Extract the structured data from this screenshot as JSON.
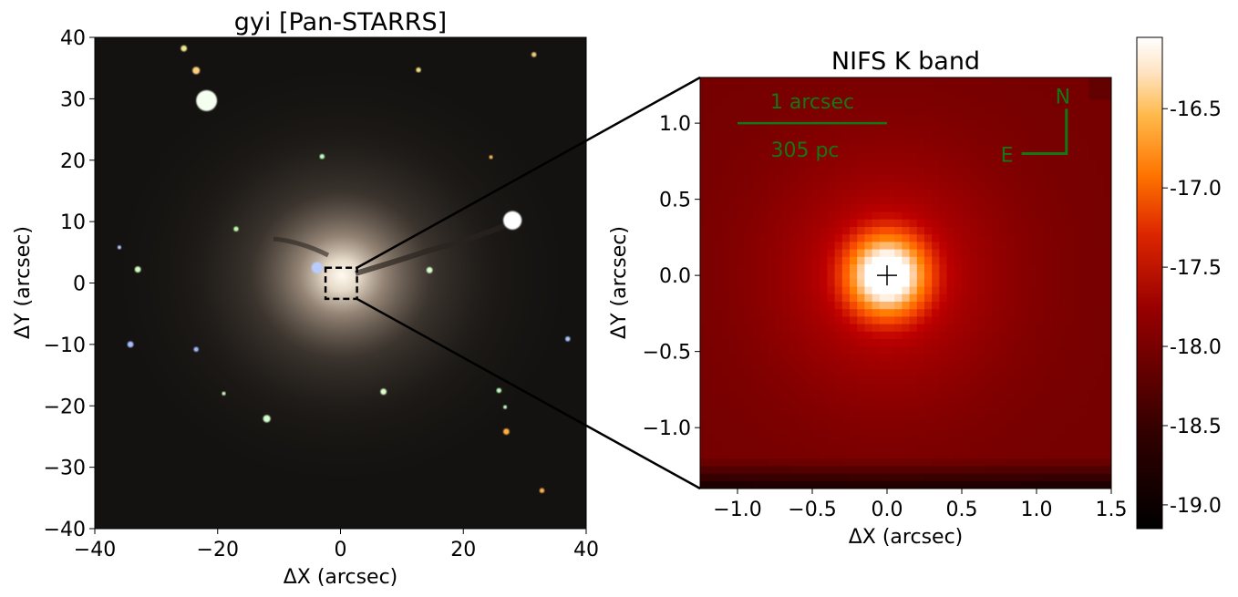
{
  "chart_data": [
    {
      "type": "heatmap",
      "title": "gyi [Pan-STARRS]",
      "xlabel": "ΔX (arcsec)",
      "ylabel": "ΔY (arcsec)",
      "xlim": [
        -40,
        40
      ],
      "ylim": [
        -40,
        40
      ],
      "xticks": [
        -40,
        -20,
        0,
        20,
        40
      ],
      "xtick_labels": [
        "−40",
        "−20",
        "0",
        "20",
        "40"
      ],
      "yticks": [
        40,
        30,
        20,
        10,
        0,
        -10,
        -20,
        -30,
        -40
      ],
      "ytick_labels": [
        "40",
        "30",
        "20",
        "10",
        "0",
        "−10",
        "−20",
        "−30",
        "−40"
      ],
      "zoom_box": {
        "x": [
          -1.25,
          1.5
        ],
        "y": [
          -1.4,
          1.3
        ]
      },
      "sources": [
        {
          "x": -21.8,
          "y": 29.7,
          "r": 1.7,
          "color": "#f4fff0"
        },
        {
          "x": -23.5,
          "y": 34.6,
          "r": 0.6,
          "color": "#ffd080"
        },
        {
          "x": -25.5,
          "y": 38.2,
          "r": 0.5,
          "color": "#f0e890"
        },
        {
          "x": 28.0,
          "y": 10.2,
          "r": 1.5,
          "color": "#ffffff"
        },
        {
          "x": -3.8,
          "y": 2.5,
          "r": 0.9,
          "color": "#b8ccff"
        },
        {
          "x": 14.5,
          "y": 2.1,
          "r": 0.5,
          "color": "#d8ffd0"
        },
        {
          "x": -3.0,
          "y": 20.6,
          "r": 0.4,
          "color": "#c0ffc0"
        },
        {
          "x": -33.0,
          "y": 2.2,
          "r": 0.5,
          "color": "#d0ffc0"
        },
        {
          "x": -34.2,
          "y": -10.0,
          "r": 0.5,
          "color": "#a8c0ff"
        },
        {
          "x": -23.5,
          "y": -10.8,
          "r": 0.4,
          "color": "#a0b8ff"
        },
        {
          "x": -12.0,
          "y": -22.1,
          "r": 0.6,
          "color": "#d8ffd0"
        },
        {
          "x": 7.0,
          "y": -17.7,
          "r": 0.5,
          "color": "#e0ffd0"
        },
        {
          "x": 27.0,
          "y": -24.2,
          "r": 0.5,
          "color": "#ffb040"
        },
        {
          "x": 25.8,
          "y": -17.5,
          "r": 0.4,
          "color": "#c0ffc0"
        },
        {
          "x": 37.0,
          "y": -9.1,
          "r": 0.4,
          "color": "#a8c8ff"
        },
        {
          "x": -17.0,
          "y": 8.8,
          "r": 0.4,
          "color": "#c0ffb0"
        },
        {
          "x": 12.7,
          "y": 34.7,
          "r": 0.4,
          "color": "#f0e080"
        },
        {
          "x": 31.5,
          "y": 37.2,
          "r": 0.4,
          "color": "#f0d080"
        },
        {
          "x": 24.5,
          "y": 20.5,
          "r": 0.3,
          "color": "#ffc060"
        },
        {
          "x": -36.0,
          "y": 5.8,
          "r": 0.3,
          "color": "#c0d0ff"
        },
        {
          "x": 32.8,
          "y": -33.8,
          "r": 0.4,
          "color": "#ffb050"
        },
        {
          "x": -19.0,
          "y": -18.0,
          "r": 0.3,
          "color": "#d0ffc0"
        },
        {
          "x": 26.8,
          "y": -20.2,
          "r": 0.3,
          "color": "#c8ffc8"
        }
      ]
    },
    {
      "type": "heatmap",
      "title": "NIFS K band",
      "xlabel": "ΔX (arcsec)",
      "ylabel": "ΔY (arcsec)",
      "xlim": [
        -1.25,
        1.5
      ],
      "ylim": [
        -1.4,
        1.3
      ],
      "xticks": [
        -1.0,
        -0.5,
        0.0,
        0.5,
        1.0,
        1.5
      ],
      "xtick_labels": [
        "−1.0",
        "−0.5",
        "0.0",
        "0.5",
        "1.0",
        "1.5"
      ],
      "yticks": [
        1.0,
        0.5,
        0.0,
        -0.5,
        -1.0
      ],
      "ytick_labels": [
        "1.0",
        "0.5",
        "0.0",
        "−0.5",
        "−1.0"
      ],
      "nucleus": {
        "x": 0.0,
        "y": 0.0
      },
      "peak": -16.1,
      "background": -18.2,
      "core_sigma": 0.18,
      "halo_sigma": 0.55,
      "scale_bar": {
        "label_top": "1 arcsec",
        "label_bottom": "305 pc",
        "x_start": -1.0,
        "x_end": 0.0,
        "y": 1.0
      },
      "compass": {
        "north_label": "N",
        "east_label": "E",
        "corner_x": 1.2,
        "corner_y": 0.8,
        "length": 0.3
      },
      "annotation_color": "#137813",
      "colorbar": {
        "colormap": "gist_heat",
        "vmin": -19.15,
        "vmax": -16.05,
        "ticks": [
          -16.5,
          -17.0,
          -17.5,
          -18.0,
          -18.5,
          -19.0
        ],
        "tick_labels": [
          "-16.5",
          "-17.0",
          "-17.5",
          "-18.0",
          "-18.5",
          "-19.0"
        ]
      }
    }
  ]
}
